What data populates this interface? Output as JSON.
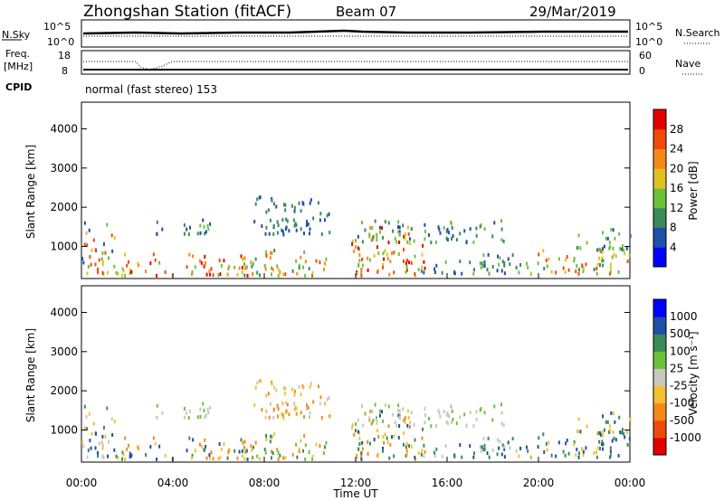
{
  "header": {
    "station": "Zhongshan Station (fitACF)",
    "beam": "Beam 07",
    "date": "29/Mar/2019"
  },
  "top_panels": {
    "nsky_label": "N.Sky",
    "nsky_ticks": [
      "10^5",
      "10^0"
    ],
    "nsearch_label": "N.Search",
    "nsearch_ticks": [
      "10^5",
      "10^0"
    ],
    "freq_label": "Freq.",
    "freq_unit": "[MHz]",
    "freq_ticks": [
      "18",
      "8"
    ],
    "nave_label": "Nave",
    "nave_ticks": [
      "60",
      "0"
    ],
    "cpid_label": "CPID",
    "cpid_text": "normal (fast stereo) 153"
  },
  "chart_data": [
    {
      "type": "heatmap",
      "name": "power",
      "ylabel": "Slant Range [km]",
      "xlabel": "",
      "yticks": [
        1000,
        2000,
        3000,
        4000
      ],
      "ylim": [
        180,
        4680
      ],
      "colorbar": {
        "label": "Power [dB]",
        "tick_labels": [
          "4",
          "8",
          "12",
          "16",
          "20",
          "24",
          "28"
        ],
        "tick_values": [
          4,
          8,
          12,
          16,
          20,
          24,
          28
        ],
        "range": [
          0,
          30
        ],
        "colors": [
          "#0000ff",
          "#1f4fa8",
          "#3a8a5a",
          "#6cc23a",
          "#e0c21f",
          "#f58a1a",
          "#f04a0a",
          "#e30000"
        ]
      },
      "note": "ground/ionospheric scatter mostly below 2000 km; patches near 1250-1600 km at 04:00-06:00, 08:00-11:00, 12:00-18:00"
    },
    {
      "type": "heatmap",
      "name": "velocity",
      "ylabel": "Slant Range [km]",
      "xlabel": "Time UT",
      "xticks": [
        "00:00",
        "04:00",
        "08:00",
        "12:00",
        "16:00",
        "20:00",
        "00:00"
      ],
      "yticks": [
        1000,
        2000,
        3000,
        4000
      ],
      "ylim": [
        180,
        4680
      ],
      "colorbar": {
        "label": "Velocity [m s⁻¹]",
        "tick_labels": [
          "1000",
          "500",
          "100",
          "25",
          "-25",
          "-100",
          "-500",
          "-1000"
        ],
        "colors": [
          "#e30000",
          "#f04a0a",
          "#f58a1a",
          "#f5c030",
          "#c8c8c0",
          "#6cc23a",
          "#3a8a5a",
          "#1f4fa8",
          "#0000ff"
        ]
      }
    }
  ]
}
